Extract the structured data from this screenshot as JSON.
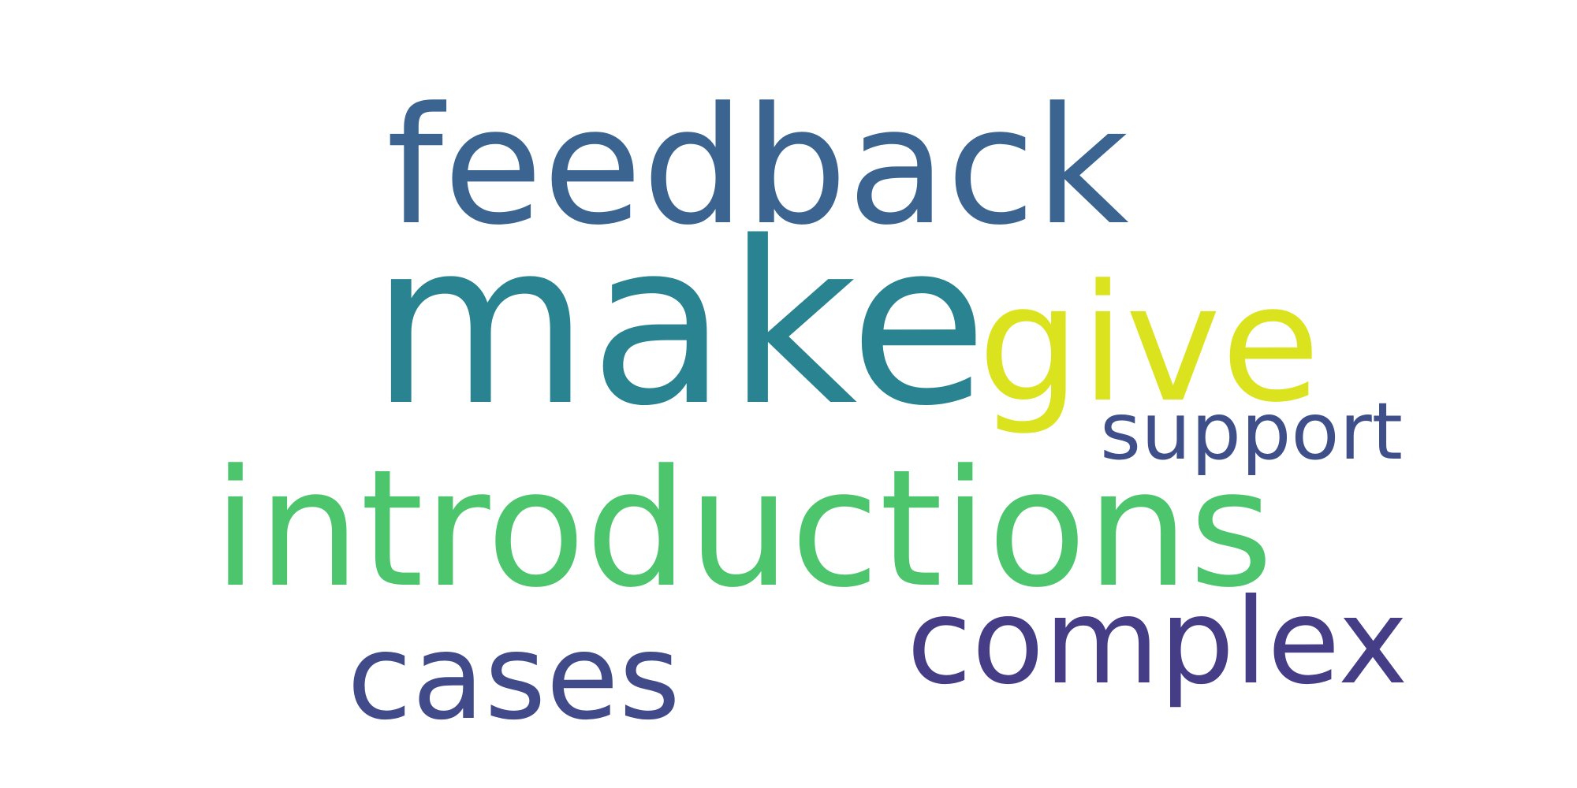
{
  "word_cloud": {
    "words": [
      {
        "text": "feedback",
        "color": "#3b6590"
      },
      {
        "text": "make",
        "color": "#2a8390"
      },
      {
        "text": "give",
        "color": "#dbe31e"
      },
      {
        "text": "support",
        "color": "#3f4f8a"
      },
      {
        "text": "introductions",
        "color": "#4cc56d"
      },
      {
        "text": "complex",
        "color": "#463d87"
      },
      {
        "text": "cases",
        "color": "#414b8a"
      }
    ]
  }
}
